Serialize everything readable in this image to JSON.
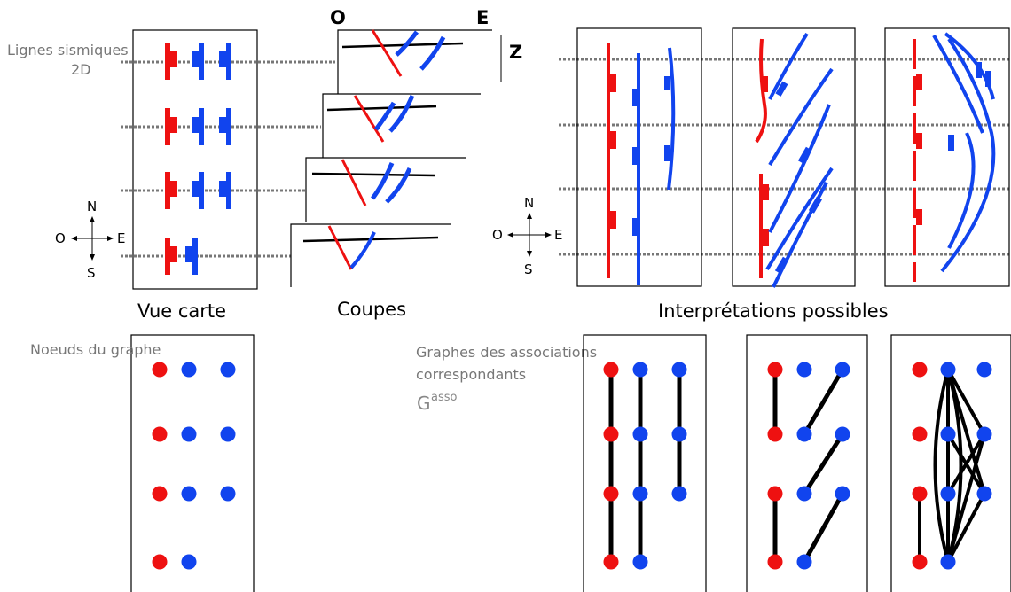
{
  "labels": {
    "seismic_lines_line1": "Lignes sismiques",
    "seismic_lines_line2": "2D",
    "section_west": "O",
    "section_east": "E",
    "section_depth": "Z",
    "map_view": "Vue carte",
    "sections": "Coupes",
    "interpretations": "Interprétations possibles",
    "graph_nodes": "Noeuds du graphe",
    "assoc_graphs_line1": "Graphes des associations",
    "assoc_graphs_line2": "correspondants",
    "gasso_symbol": "G",
    "gasso_superscript": "asso"
  },
  "compass": {
    "north": "N",
    "south": "S",
    "east": "E",
    "west": "O"
  },
  "colors": {
    "red_fault": "#ee1111",
    "blue_fault": "#1144ee",
    "seismic_line": "#777777",
    "edge": "#000000",
    "caption_gray": "#777777"
  }
}
